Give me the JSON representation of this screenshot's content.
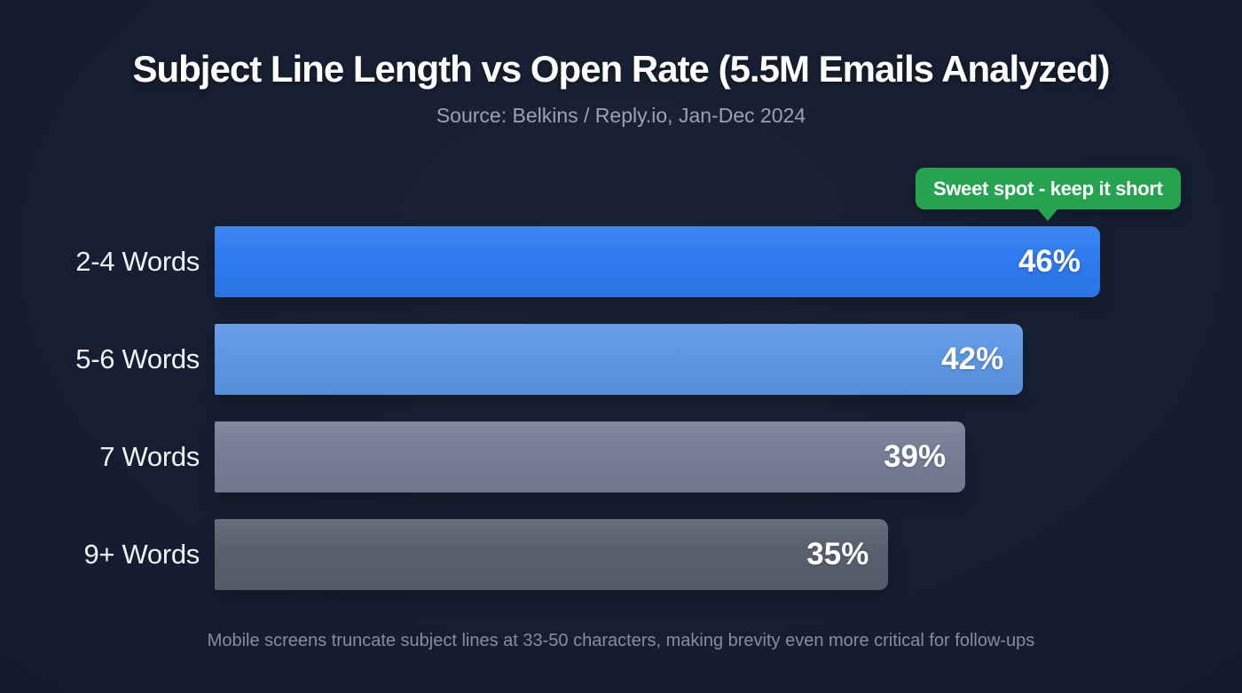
{
  "chart_data": {
    "type": "bar",
    "orientation": "horizontal",
    "title": "Subject Line Length vs Open Rate (5.5M Emails Analyzed)",
    "subtitle": "Source: Belkins / Reply.io, Jan-Dec 2024",
    "categories": [
      "2-4 Words",
      "5-6 Words",
      "7 Words",
      "9+ Words"
    ],
    "values": [
      46,
      42,
      39,
      35
    ],
    "value_labels": [
      "46%",
      "42%",
      "39%",
      "35%"
    ],
    "unit": "%",
    "xlim": [
      0,
      46
    ],
    "grid": false,
    "legend": false,
    "bar_colors": [
      "#2e7bf0",
      "#5d97e5",
      "#757e96",
      "#596070"
    ],
    "annotation": {
      "text": "Sweet spot - keep it short",
      "target": "2-4 Words",
      "color": "#26a350",
      "text_color": "#ffffff"
    },
    "footnote": "Mobile screens truncate subject lines at 33-50 characters, making brevity even more critical for follow-ups"
  },
  "colors": {
    "background": "#141d2f",
    "title": "#ffffff",
    "subtitle": "#99a2b6",
    "category_label": "#f0f3f8",
    "value_label": "#ffffff",
    "footnote": "#848ea3"
  }
}
